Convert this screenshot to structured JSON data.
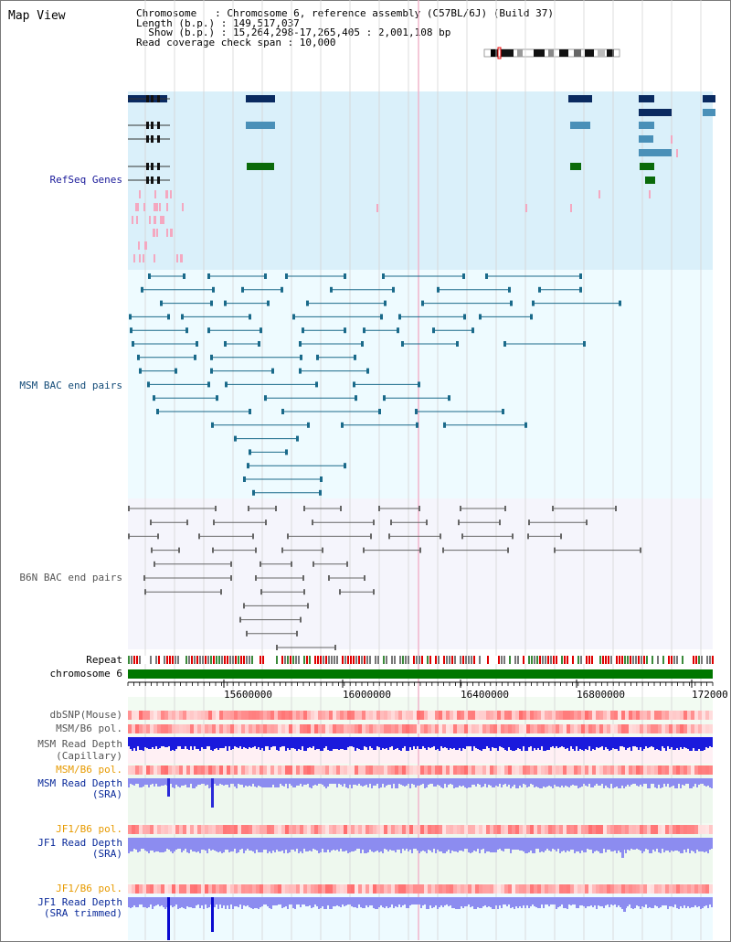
{
  "title": "Map View",
  "info": {
    "chromosome_line": "Chromosome   : Chromosome 6, reference assembly (C57BL/6J) (Build 37)",
    "length_line": "Length (b.p.) : 149,517,037",
    "show_line": "  Show (b.p.) : 15,264,298-17,265,405 : 2,001,108 bp",
    "coverage_line": "Read coverage check span : 10,000"
  },
  "tracks": {
    "refseq": "RefSeq Genes",
    "msm_bac": "MSM BAC end pairs",
    "b6n_bac": "B6N BAC end pairs",
    "repeat": "Repeat",
    "chromosome": "chromosome 6",
    "dbsnp": "dbSNP(Mouse)",
    "msm_b6_pol_1": "MSM/B6 pol.",
    "msm_read_depth_cap_1": "MSM Read Depth",
    "msm_read_depth_cap_2": "(Capillary)",
    "msm_b6_pol_2": "MSM/B6 pol.",
    "msm_read_depth_sra_1": "MSM Read Depth",
    "msm_read_depth_sra_2": "(SRA)",
    "jf1_b6_pol_1": "JF1/B6 pol.",
    "jf1_read_depth_sra_1": "JF1 Read Depth",
    "jf1_read_depth_sra_2": "(SRA)",
    "jf1_b6_pol_2": "JF1/B6 pol.",
    "jf1_read_depth_trim_1": "JF1 Read Depth",
    "jf1_read_depth_trim_2": "(SRA trimmed)"
  },
  "axis_ticks": [
    "15600000",
    "16000000",
    "16400000",
    "16800000",
    "172000"
  ],
  "colors": {
    "refseq_bg": "#daf0fa",
    "msm_bg": "#eefbff",
    "b6n_bg": "#f5f5fc",
    "chromosome_bar": "#007700",
    "depth_dark": "#1a1adc",
    "depth_light": "#8c8cf0",
    "pol_red": "#f06060",
    "gene_dark": "#0a2a60",
    "gene_mid": "#4a90b8",
    "gene_green": "#0a6a0a",
    "bac_teal": "#1a6a8a",
    "bac_gray": "#666666",
    "pink": "#f4a8c0",
    "highlight": "#f0b0c8"
  }
}
